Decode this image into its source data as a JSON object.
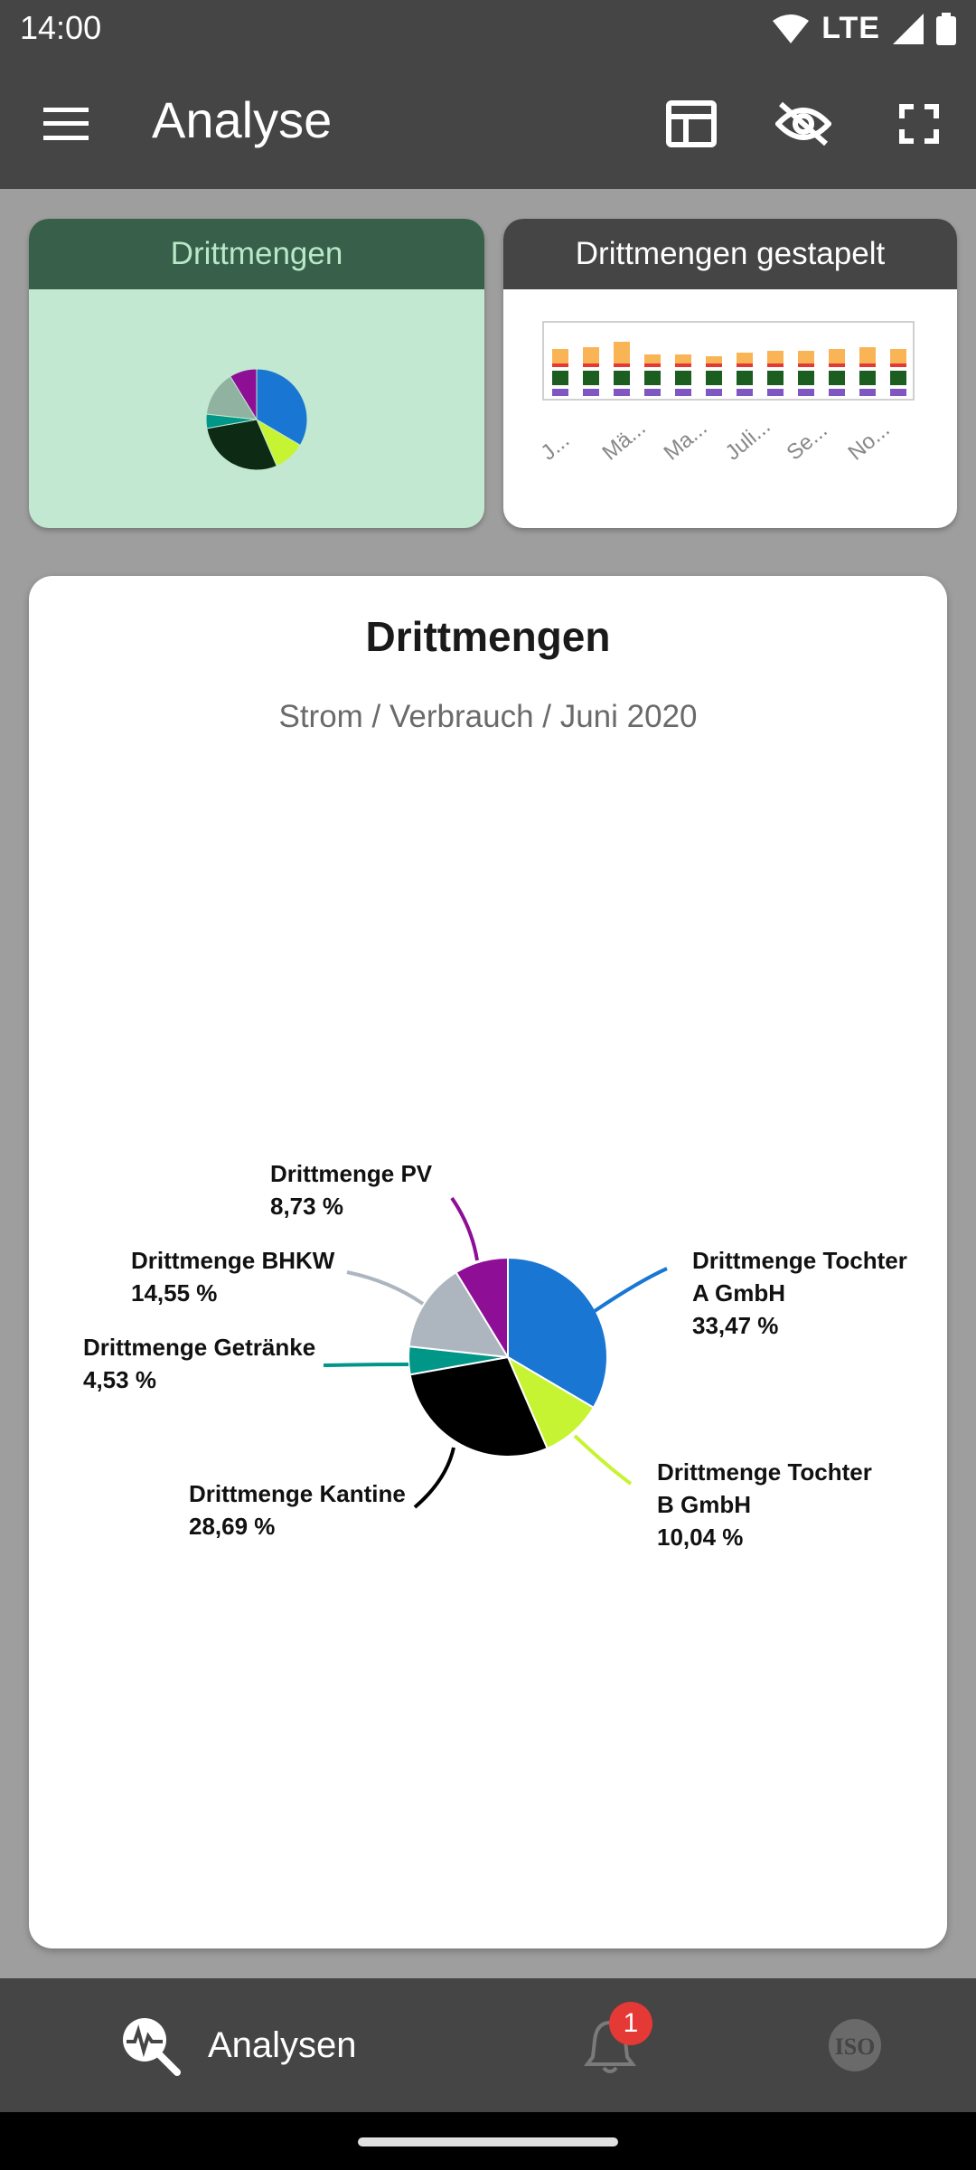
{
  "status": {
    "time": "14:00",
    "network": "LTE"
  },
  "app_bar": {
    "title": "Analyse"
  },
  "tiles": [
    {
      "label": "Drittmengen"
    },
    {
      "label": "Drittmengen gestapelt",
      "x_labels": [
        "J...",
        "Mä...",
        "Ma...",
        "Juli...",
        "Se...",
        "No..."
      ]
    }
  ],
  "card": {
    "title": "Drittmengen",
    "subtitle": "Strom / Verbrauch / Juni 2020"
  },
  "chart_data": {
    "type": "pie",
    "slices": [
      {
        "name_line1": "Drittmenge Tochter",
        "name_line2": "A GmbH",
        "value": 33.47,
        "label": "33,47 %",
        "color": "#1976d2"
      },
      {
        "name_line1": "Drittmenge Tochter",
        "name_line2": "B GmbH",
        "value": 10.04,
        "label": "10,04 %",
        "color": "#c6f432"
      },
      {
        "name_line1": "Drittmenge Kantine",
        "name_line2": "",
        "value": 28.69,
        "label": "28,69 %",
        "color": "#000000"
      },
      {
        "name_line1": "Drittmenge Getränke",
        "name_line2": "",
        "value": 4.53,
        "label": "4,53 %",
        "color": "#009688"
      },
      {
        "name_line1": "Drittmenge BHKW",
        "name_line2": "",
        "value": 14.55,
        "label": "14,55 %",
        "color": "#adb6bf"
      },
      {
        "name_line1": "Drittmenge PV",
        "name_line2": "",
        "value": 8.73,
        "label": "8,73 %",
        "color": "#8e0e96"
      }
    ]
  },
  "bottom_nav": {
    "analysen_label": "Analysen",
    "notification_count": "1",
    "iso_label": "ISO"
  }
}
